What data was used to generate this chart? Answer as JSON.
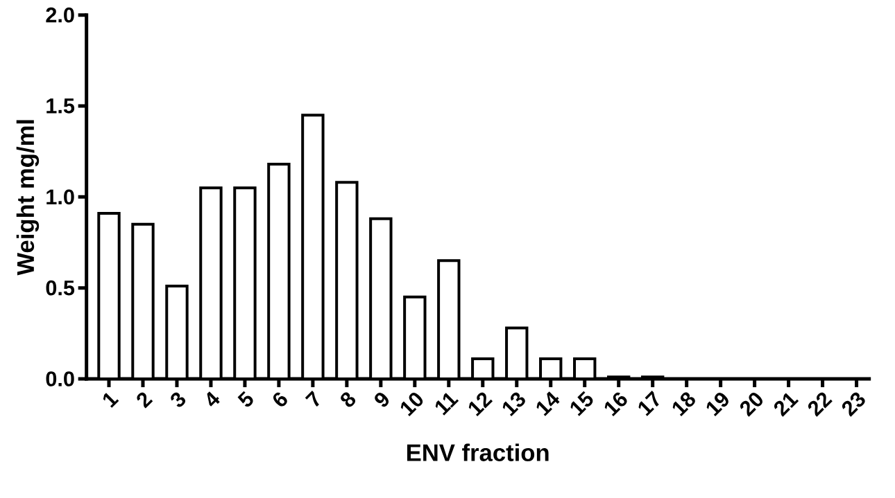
{
  "chart_data": {
    "type": "bar",
    "xlabel": "ENV fraction",
    "ylabel": "Weight mg/ml",
    "categories": [
      "1",
      "2",
      "3",
      "4",
      "5",
      "6",
      "7",
      "8",
      "9",
      "10",
      "11",
      "12",
      "13",
      "14",
      "15",
      "16",
      "17",
      "18",
      "19",
      "20",
      "21",
      "22",
      "23"
    ],
    "values": [
      0.91,
      0.85,
      0.51,
      1.05,
      1.05,
      1.18,
      1.45,
      1.08,
      0.88,
      0.45,
      0.65,
      0.11,
      0.28,
      0.11,
      0.11,
      0.01,
      0.01,
      0,
      0,
      0,
      0,
      0,
      0
    ],
    "color": "#000000",
    "ylim": [
      0,
      2
    ],
    "yticks": [
      {
        "value": 0,
        "label": "0.0"
      },
      {
        "value": 0.5,
        "label": "0.5"
      },
      {
        "value": 1,
        "label": "1.0"
      },
      {
        "value": 1.5,
        "label": "1.5"
      },
      {
        "value": 2,
        "label": "2.0"
      }
    ]
  }
}
